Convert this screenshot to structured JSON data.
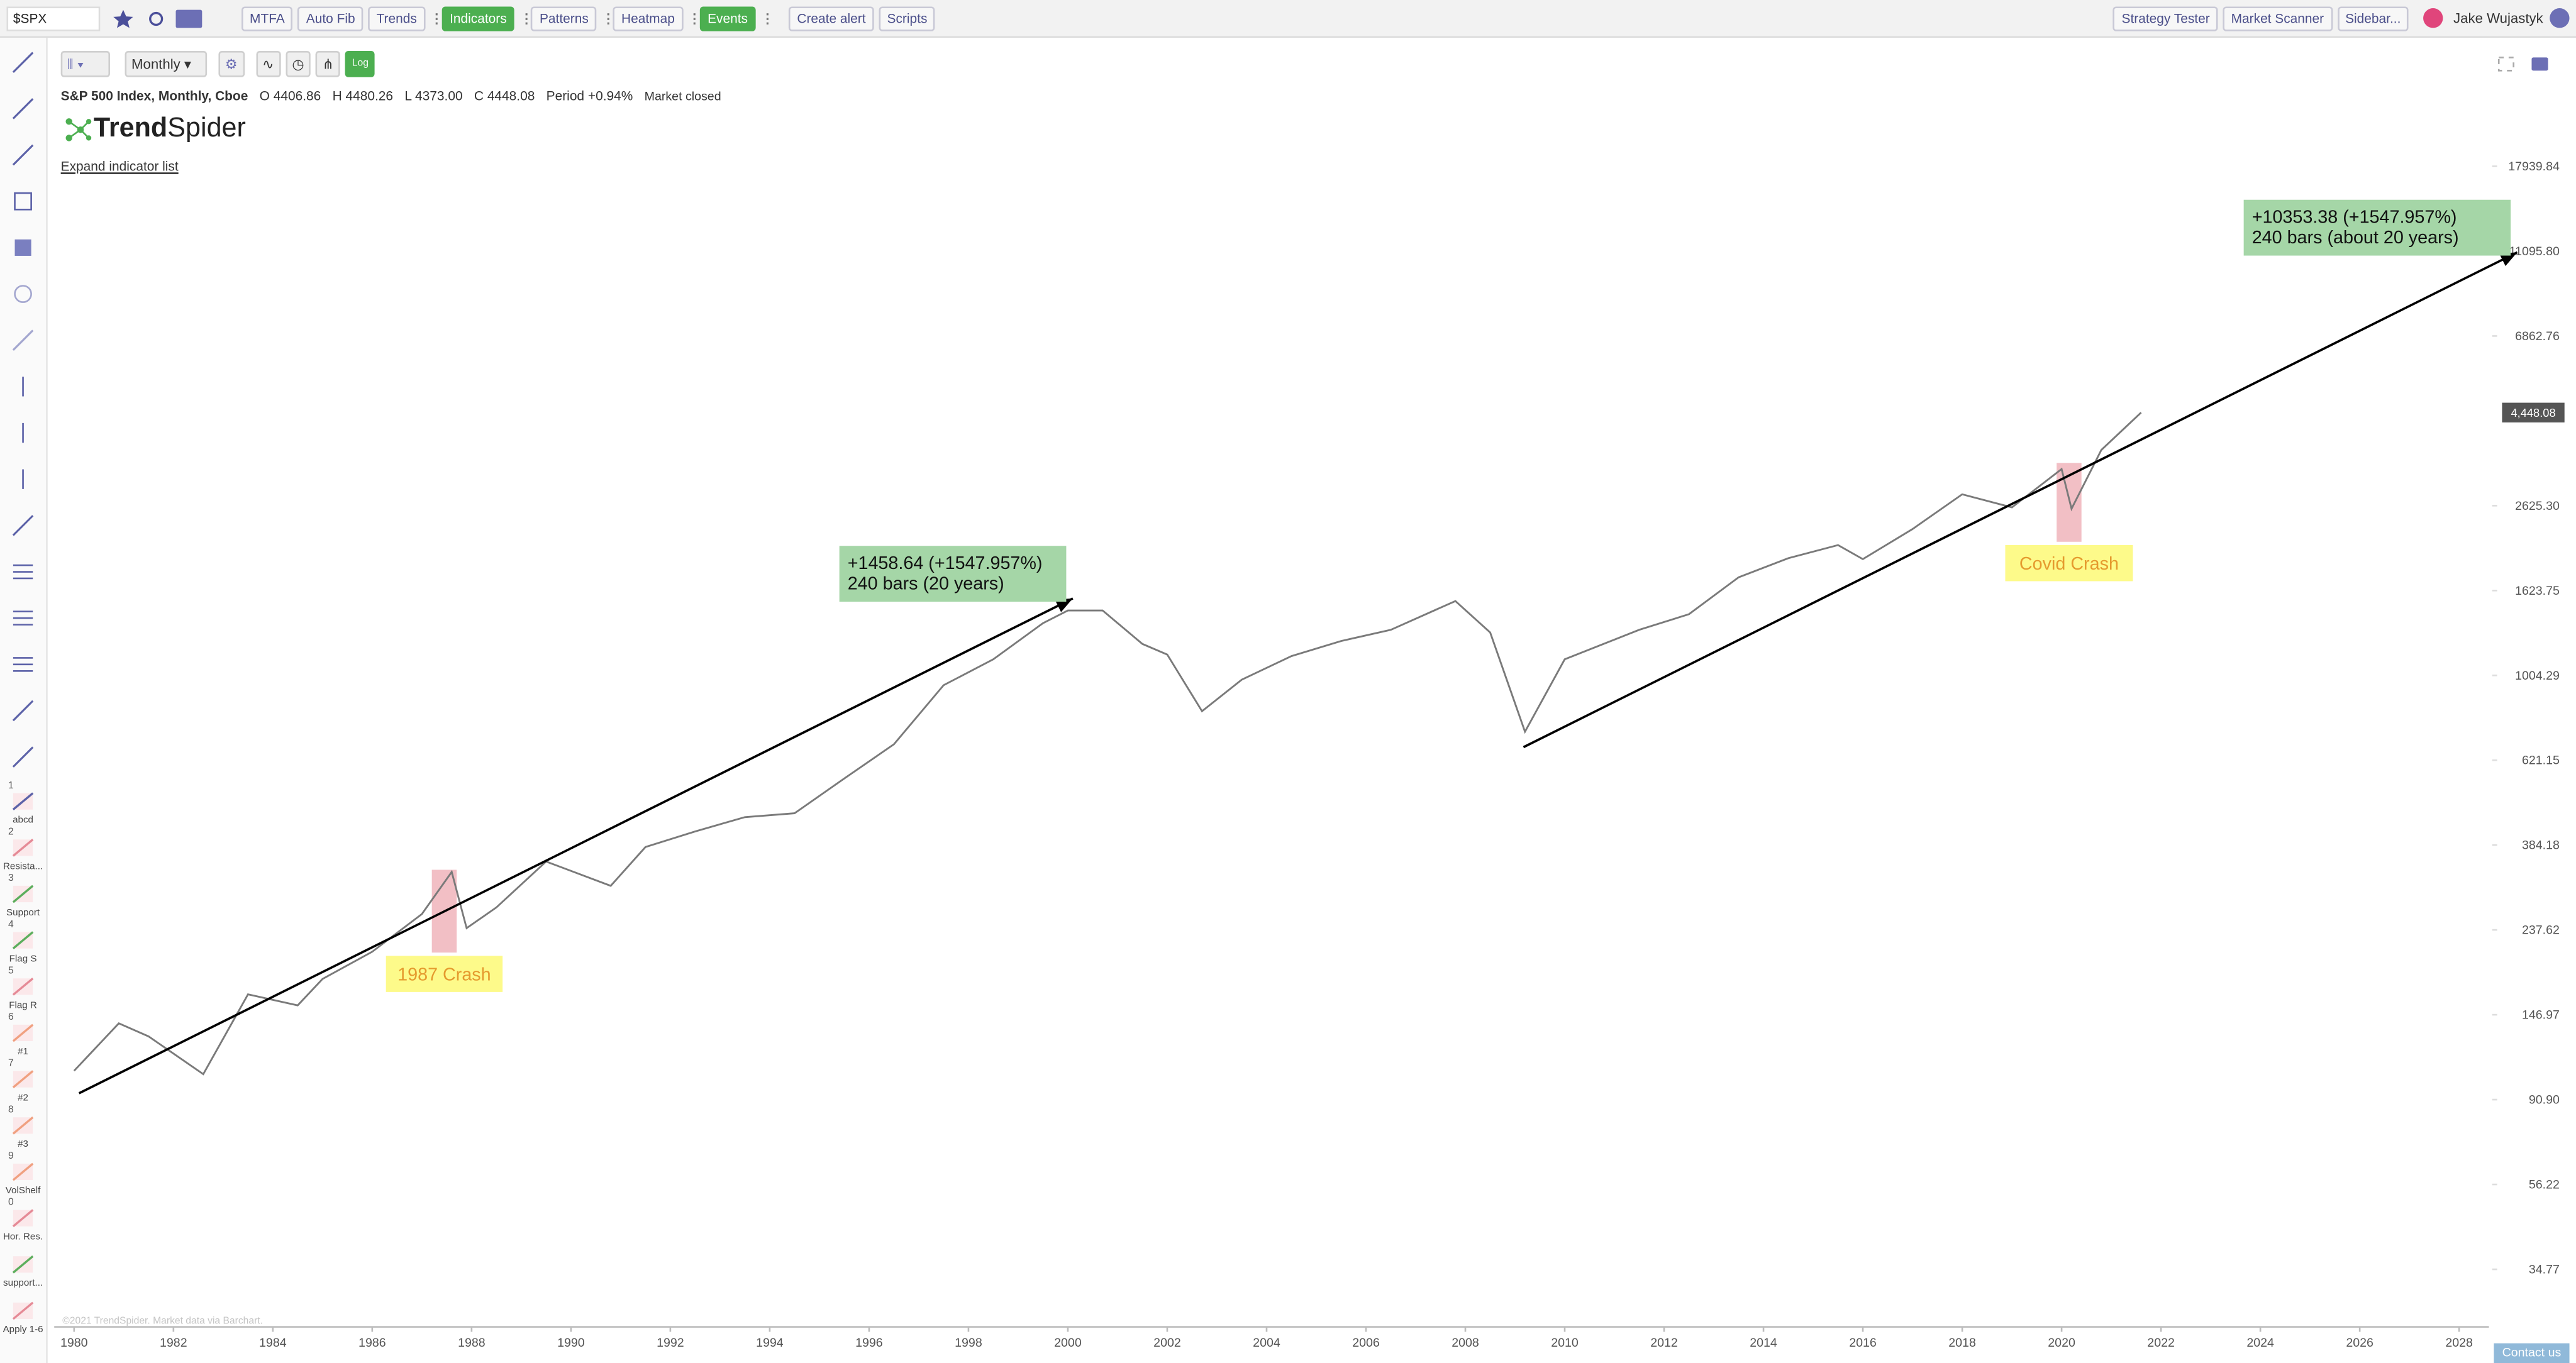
{
  "toolbar": {
    "symbol": "$SPX",
    "buttons": [
      {
        "label": "MTFA"
      },
      {
        "label": "Auto Fib"
      },
      {
        "label": "Trends"
      },
      {
        "label": "Indicators",
        "active": true
      },
      {
        "label": "Patterns"
      },
      {
        "label": "Heatmap"
      },
      {
        "label": "Events",
        "active": true
      },
      {
        "label": "Create alert"
      },
      {
        "label": "Scripts"
      }
    ],
    "right_buttons": [
      "Strategy Tester",
      "Market Scanner",
      "Sidebar..."
    ],
    "user": "Jake Wujastyk"
  },
  "chart_toolbar": {
    "interval": "Monthly",
    "log_button": "Log"
  },
  "header": {
    "instrument": "S&P 500 Index, Monthly, Cboe",
    "ohlc": [
      {
        "key": "O",
        "value": "4406.86"
      },
      {
        "key": "H",
        "value": "4480.26"
      },
      {
        "key": "L",
        "value": "4373.00"
      },
      {
        "key": "C",
        "value": "4448.08"
      },
      {
        "key": "Period",
        "value": "+0.94%"
      }
    ],
    "status": "Market closed",
    "logo_bold": "Trend",
    "logo_rest": "Spider",
    "expand_link": "Expand indicator list",
    "copyright": "©2021 TrendSpider. Market data via Barchart."
  },
  "sidebar": {
    "presets": [
      {
        "key": "1",
        "label": "abcd"
      },
      {
        "key": "2",
        "label": "Resista..."
      },
      {
        "key": "3",
        "label": "Support"
      },
      {
        "key": "4",
        "label": "Flag S"
      },
      {
        "key": "5",
        "label": "Flag R"
      },
      {
        "key": "6",
        "label": "#1"
      },
      {
        "key": "7",
        "label": "#2"
      },
      {
        "key": "8",
        "label": "#3"
      },
      {
        "key": "9",
        "label": "VolShelf"
      },
      {
        "key": "0",
        "label": "Hor. Res."
      },
      {
        "label": "support..."
      },
      {
        "label": "Apply 1-6"
      }
    ],
    "contact": "Contact us"
  },
  "chart_data": {
    "type": "line",
    "color": "#7a7a7a",
    "log_scale": true,
    "grid": false,
    "xlim": [
      1979.6,
      2028.6
    ],
    "xticks": [
      1980,
      1982,
      1984,
      1986,
      1988,
      1990,
      1992,
      1994,
      1996,
      1998,
      2000,
      2002,
      2004,
      2006,
      2008,
      2010,
      2012,
      2014,
      2016,
      2018,
      2020,
      2022,
      2024,
      2026,
      2028
    ],
    "ylim": [
      25.1,
      36800
    ],
    "yticks": [
      34.77,
      56.22,
      {
        "value": 90.9,
        "label": "90.90"
      },
      146.97,
      237.62,
      384.18,
      621.15,
      1004.29,
      1623.75,
      {
        "value": 2625.3,
        "label": "2625.30"
      },
      6862.76,
      {
        "value": 11095.8,
        "label": "11095.80"
      },
      17939.84
    ],
    "x": [
      1980.0,
      1980.9,
      1981.5,
      1982.6,
      1983.5,
      1984.5,
      1985.0,
      1986.0,
      1987.0,
      1987.6,
      1987.9,
      1988.5,
      1989.5,
      1990.8,
      1991.5,
      1992.5,
      1993.5,
      1994.5,
      1995.5,
      1996.5,
      1997.5,
      1998.5,
      1999.5,
      2000.0,
      2000.7,
      2001.5,
      2002.0,
      2002.7,
      2003.5,
      2004.5,
      2005.5,
      2006.5,
      2007.8,
      2008.5,
      2009.2,
      2010.0,
      2011.5,
      2012.5,
      2013.5,
      2014.5,
      2015.5,
      2016.0,
      2017.0,
      2018.0,
      2019.0,
      2020.0,
      2020.2,
      2020.8,
      2021.6
    ],
    "values": [
      107,
      140,
      130,
      105,
      165,
      155,
      180,
      210,
      260,
      330,
      240,
      270,
      350,
      305,
      380,
      415,
      450,
      460,
      560,
      680,
      950,
      1100,
      1350,
      1450,
      1450,
      1200,
      1130,
      820,
      980,
      1120,
      1220,
      1300,
      1530,
      1280,
      730,
      1100,
      1300,
      1420,
      1750,
      1950,
      2100,
      1940,
      2300,
      2800,
      2600,
      3230,
      2580,
      3600,
      4448.08
    ],
    "last_price": {
      "value": 4448.08,
      "label": "4,448.08"
    },
    "trend_lines": [
      {
        "x": [
          1980.1,
          2000.1
        ],
        "y": [
          94.23,
          1552.87
        ],
        "label": [
          "+1458.64 (+1547.957%)",
          "240 bars (20 years)"
        ]
      },
      {
        "x": [
          2009.17,
          2029.17
        ],
        "y": [
          668.84,
          11022.22
        ],
        "label": [
          "+10353.38 (+1547.957%)",
          "240 bars (about 20 years)"
        ]
      }
    ],
    "highlights": [
      {
        "label": "1987 Crash",
        "x": [
          1987.2,
          1987.7
        ],
        "y": [
          209,
          334
        ]
      },
      {
        "label": "Covid Crash",
        "x": [
          2019.9,
          2020.4
        ],
        "y": [
          2140,
          3345
        ]
      }
    ]
  }
}
